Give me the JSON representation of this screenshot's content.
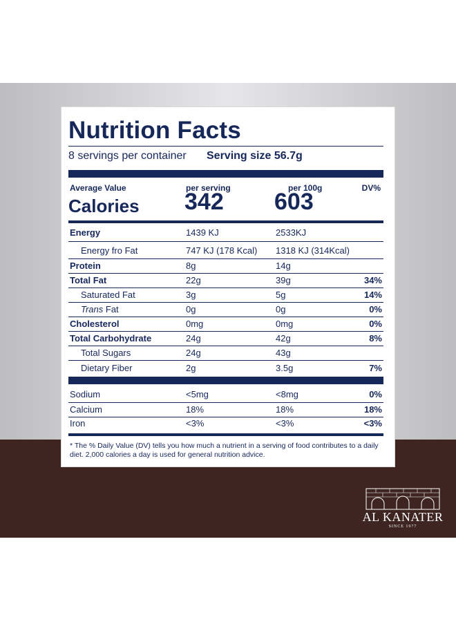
{
  "label": {
    "title": "Nutrition Facts",
    "servings": "8 servings per container",
    "serving_size": "Serving size 56.7g",
    "headers": {
      "average_value": "Average Value",
      "per_serving": "per serving",
      "per_100g": "per 100g",
      "dv": "DV%"
    },
    "calories": {
      "label": "Calories",
      "per_serving": "342",
      "per_100g": "603"
    },
    "rows": [
      {
        "name": "Energy",
        "bold": true,
        "serving": "1439 KJ",
        "per100": "2533KJ",
        "dv": ""
      },
      {
        "name": "Energy fro Fat",
        "indent": true,
        "serving": "747 KJ (178 Kcal)",
        "per100": "1318 KJ (314Kcal)",
        "dv": ""
      },
      {
        "name": "Protein",
        "bold": true,
        "serving": "8g",
        "per100": "14g",
        "dv": ""
      },
      {
        "name": "Total Fat",
        "bold": true,
        "serving": "22g",
        "per100": "39g",
        "dv": "34%"
      },
      {
        "name": "Saturated Fat",
        "indent": true,
        "serving": "3g",
        "per100": "5g",
        "dv": "14%"
      },
      {
        "name_italic": "Trans",
        "name_rest": " Fat",
        "indent": true,
        "serving": "0g",
        "per100": "0g",
        "dv": "0%"
      },
      {
        "name": "Cholesterol",
        "bold": true,
        "serving": "0mg",
        "per100": "0mg",
        "dv": "0%"
      },
      {
        "name": "Total Carbohydrate",
        "bold": true,
        "serving": "24g",
        "per100": "42g",
        "dv": "8%"
      },
      {
        "name": "Total Sugars",
        "indent": true,
        "serving": "24g",
        "per100": "43g",
        "dv": ""
      },
      {
        "name": "Dietary Fiber",
        "indent": true,
        "serving": "2g",
        "per100": "3.5g",
        "dv": "7%"
      }
    ],
    "minerals": [
      {
        "name": "Sodium",
        "serving": "<5mg",
        "per100": "<8mg",
        "dv": "0%"
      },
      {
        "name": "Calcium",
        "serving": "18%",
        "per100": "18%",
        "dv": "18%"
      },
      {
        "name": "Iron",
        "serving": "<3%",
        "per100": "<3%",
        "dv": "<3%"
      }
    ],
    "footnote": "* The % Daily Value (DV) tells you how much a nutrient in a serving of food contributes to a daily diet. 2,000 calories a day is used for general nutrition advice."
  },
  "brand": {
    "name": "AL KANATER",
    "since": "SINCE 1977"
  },
  "colors": {
    "navy": "#16275a",
    "brown": "#3e2522",
    "gray": "#d4d4d6"
  }
}
